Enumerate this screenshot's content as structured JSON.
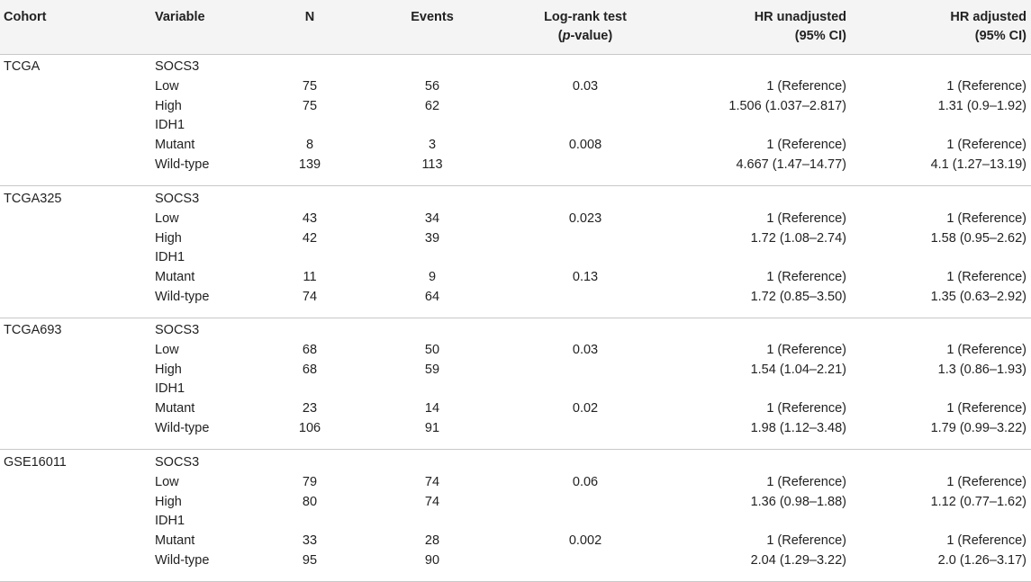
{
  "headers": {
    "cohort": "Cohort",
    "variable": "Variable",
    "n": "N",
    "events": "Events",
    "logrank_line1": "Log-rank test",
    "logrank_paren_open": "(",
    "logrank_p": "p",
    "logrank_suffix": "-value)",
    "hr_unadj_line1": "HR unadjusted",
    "hr_unadj_line2": "(95% CI)",
    "hr_adj_line1": "HR adjusted",
    "hr_adj_line2": "(95% CI)"
  },
  "groups": [
    {
      "cohort": "TCGA",
      "rows": [
        {
          "variable": "SOCS3",
          "n": "",
          "events": "",
          "logrank": "",
          "hr_unadj": "",
          "hr_adj": ""
        },
        {
          "variable": "Low",
          "n": "75",
          "events": "56",
          "logrank": "0.03",
          "hr_unadj": "1 (Reference)",
          "hr_adj": "1 (Reference)"
        },
        {
          "variable": "High",
          "n": "75",
          "events": "62",
          "logrank": "",
          "hr_unadj": "1.506 (1.037–2.817)",
          "hr_adj": "1.31 (0.9–1.92)"
        },
        {
          "variable": "IDH1",
          "n": "",
          "events": "",
          "logrank": "",
          "hr_unadj": "",
          "hr_adj": ""
        },
        {
          "variable": "Mutant",
          "n": "8",
          "events": "3",
          "logrank": "0.008",
          "hr_unadj": "1 (Reference)",
          "hr_adj": "1 (Reference)"
        },
        {
          "variable": "Wild-type",
          "n": "139",
          "events": "113",
          "logrank": "",
          "hr_unadj": "4.667 (1.47–14.77)",
          "hr_adj": "4.1 (1.27–13.19)"
        }
      ]
    },
    {
      "cohort": "TCGA325",
      "rows": [
        {
          "variable": "SOCS3",
          "n": "",
          "events": "",
          "logrank": "",
          "hr_unadj": "",
          "hr_adj": ""
        },
        {
          "variable": "Low",
          "n": "43",
          "events": "34",
          "logrank": "0.023",
          "hr_unadj": "1 (Reference)",
          "hr_adj": "1 (Reference)"
        },
        {
          "variable": "High",
          "n": "42",
          "events": "39",
          "logrank": "",
          "hr_unadj": "1.72 (1.08–2.74)",
          "hr_adj": "1.58 (0.95–2.62)"
        },
        {
          "variable": "IDH1",
          "n": "",
          "events": "",
          "logrank": "",
          "hr_unadj": "",
          "hr_adj": ""
        },
        {
          "variable": "Mutant",
          "n": "11",
          "events": "9",
          "logrank": "0.13",
          "hr_unadj": "1 (Reference)",
          "hr_adj": "1 (Reference)"
        },
        {
          "variable": "Wild-type",
          "n": "74",
          "events": "64",
          "logrank": "",
          "hr_unadj": "1.72 (0.85–3.50)",
          "hr_adj": "1.35 (0.63–2.92)"
        }
      ]
    },
    {
      "cohort": "TCGA693",
      "rows": [
        {
          "variable": "SOCS3",
          "n": "",
          "events": "",
          "logrank": "",
          "hr_unadj": "",
          "hr_adj": ""
        },
        {
          "variable": "Low",
          "n": "68",
          "events": "50",
          "logrank": "0.03",
          "hr_unadj": "1 (Reference)",
          "hr_adj": "1 (Reference)"
        },
        {
          "variable": "High",
          "n": "68",
          "events": "59",
          "logrank": "",
          "hr_unadj": "1.54 (1.04–2.21)",
          "hr_adj": "1.3 (0.86–1.93)"
        },
        {
          "variable": "IDH1",
          "n": "",
          "events": "",
          "logrank": "",
          "hr_unadj": "",
          "hr_adj": ""
        },
        {
          "variable": "Mutant",
          "n": "23",
          "events": "14",
          "logrank": "0.02",
          "hr_unadj": "1 (Reference)",
          "hr_adj": "1 (Reference)"
        },
        {
          "variable": "Wild-type",
          "n": "106",
          "events": "91",
          "logrank": "",
          "hr_unadj": "1.98 (1.12–3.48)",
          "hr_adj": "1.79 (0.99–3.22)"
        }
      ]
    },
    {
      "cohort": "GSE16011",
      "rows": [
        {
          "variable": "SOCS3",
          "n": "",
          "events": "",
          "logrank": "",
          "hr_unadj": "",
          "hr_adj": ""
        },
        {
          "variable": "Low",
          "n": "79",
          "events": "74",
          "logrank": "0.06",
          "hr_unadj": "1 (Reference)",
          "hr_adj": "1 (Reference)"
        },
        {
          "variable": "High",
          "n": "80",
          "events": "74",
          "logrank": "",
          "hr_unadj": "1.36 (0.98–1.88)",
          "hr_adj": "1.12 (0.77–1.62)"
        },
        {
          "variable": "IDH1",
          "n": "",
          "events": "",
          "logrank": "",
          "hr_unadj": "",
          "hr_adj": ""
        },
        {
          "variable": "Mutant",
          "n": "33",
          "events": "28",
          "logrank": "0.002",
          "hr_unadj": "1 (Reference)",
          "hr_adj": "1 (Reference)"
        },
        {
          "variable": "Wild-type",
          "n": "95",
          "events": "90",
          "logrank": "",
          "hr_unadj": "2.04 (1.29–3.22)",
          "hr_adj": "2.0 (1.26–3.17)"
        }
      ]
    }
  ]
}
